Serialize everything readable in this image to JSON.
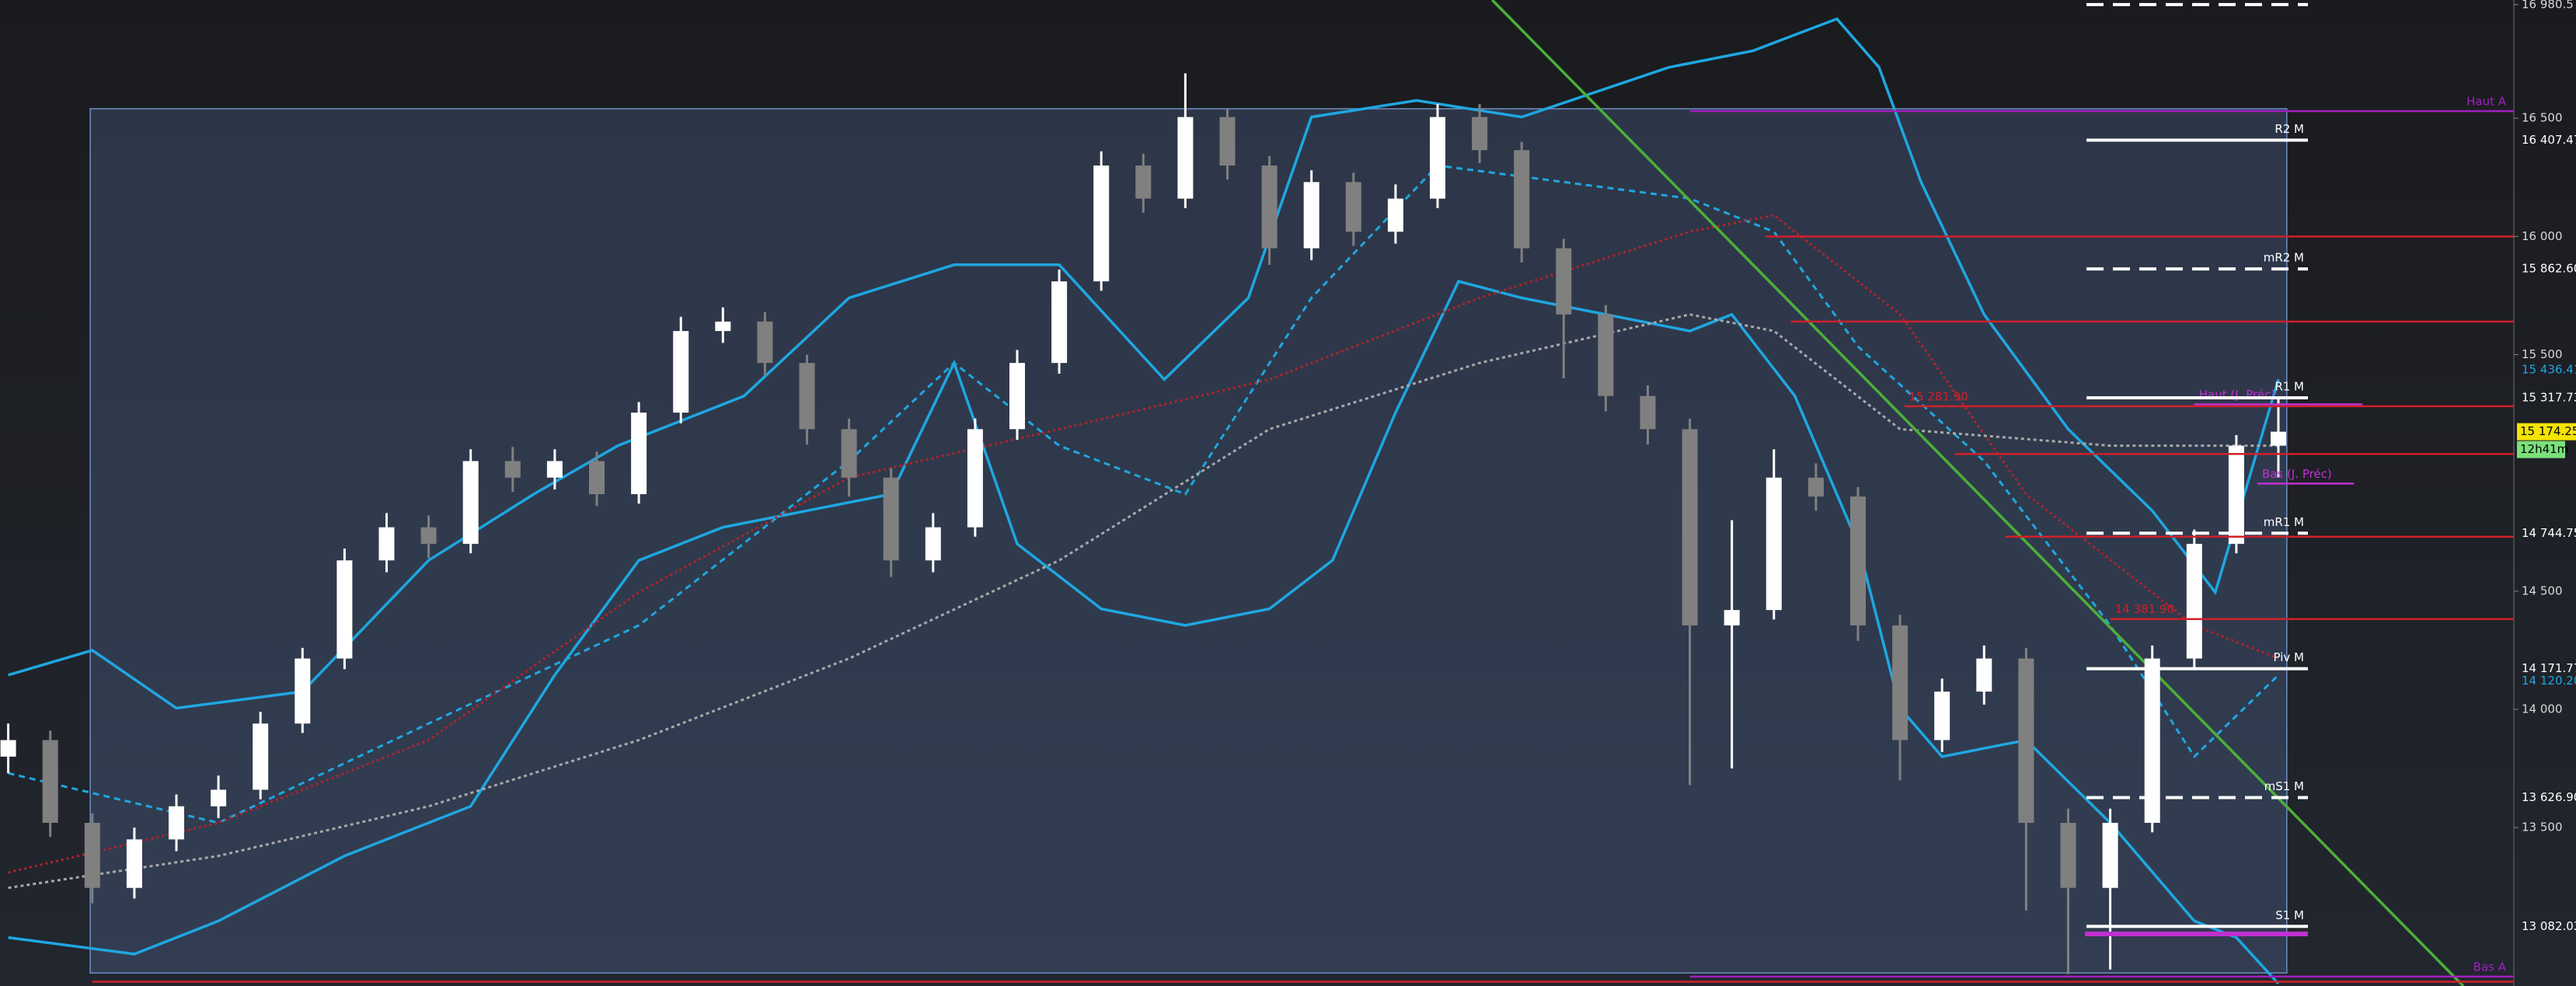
{
  "chart_data": {
    "type": "candlestick",
    "ylim": [
      12830,
      17000
    ],
    "yticks": [
      {
        "value": 16980.5,
        "label": "16 980.5"
      },
      {
        "value": 16500,
        "label": "16 500"
      },
      {
        "value": 16000,
        "label": "16 000"
      },
      {
        "value": 15500,
        "label": "15 500"
      },
      {
        "value": 14500,
        "label": "14 500"
      },
      {
        "value": 14000,
        "label": "14 000"
      },
      {
        "value": 13500,
        "label": "13 500"
      }
    ],
    "up_color": "#ffffff",
    "down_color": "#808080",
    "ohlc": {
      "open": [
        13800,
        13870,
        13520,
        13245,
        13450,
        13590,
        13660,
        13940,
        14215,
        14630,
        14770,
        14700,
        15050,
        14980,
        15050,
        14910,
        15255,
        15600,
        15640,
        15465,
        15185,
        14980,
        14630,
        14770,
        15185,
        15465,
        15810,
        16300,
        16160,
        16505,
        16300,
        15950,
        16230,
        16020,
        16160,
        16505,
        16365,
        15950,
        15670,
        15325,
        15185,
        14355,
        14420,
        14980,
        14900,
        14355,
        13870,
        14075,
        14215,
        13520,
        13245,
        13520,
        14215,
        14700,
        15115
      ],
      "high": [
        13940,
        13910,
        13560,
        13500,
        13640,
        13720,
        13990,
        14260,
        14680,
        14830,
        14820,
        15100,
        15110,
        15100,
        15090,
        15300,
        15660,
        15700,
        15680,
        15500,
        15230,
        15020,
        14830,
        15230,
        15520,
        15860,
        16360,
        16350,
        16690,
        16540,
        16340,
        16280,
        16270,
        16220,
        16560,
        16560,
        16400,
        15990,
        15710,
        15370,
        15230,
        14800,
        15100,
        15040,
        14940,
        14400,
        14130,
        14270,
        14260,
        13580,
        13580,
        14270,
        14760,
        15160,
        15320
      ],
      "low": [
        13730,
        13460,
        13180,
        13200,
        13400,
        13540,
        13620,
        13900,
        14170,
        14580,
        14640,
        14660,
        14920,
        14930,
        14860,
        14870,
        15210,
        15550,
        15410,
        15120,
        14900,
        14560,
        14580,
        14730,
        15140,
        15420,
        15770,
        16100,
        16120,
        16240,
        15880,
        15900,
        15960,
        15970,
        16120,
        16310,
        15890,
        15400,
        15260,
        15120,
        13680,
        13750,
        14380,
        14840,
        14290,
        13700,
        13820,
        14020,
        13150,
        12880,
        12900,
        13480,
        14170,
        14660,
        14980
      ],
      "close": [
        13870,
        13520,
        13245,
        13450,
        13590,
        13660,
        13940,
        14215,
        14630,
        14770,
        14700,
        15050,
        14980,
        15050,
        14910,
        15255,
        15600,
        15640,
        15465,
        15185,
        14980,
        14630,
        14770,
        15185,
        15465,
        15810,
        16300,
        16160,
        16505,
        16300,
        15950,
        16230,
        16020,
        16160,
        16505,
        16365,
        15950,
        15670,
        15325,
        15185,
        14355,
        14420,
        14980,
        14900,
        14355,
        13870,
        14075,
        14215,
        13520,
        13245,
        13520,
        14215,
        14700,
        15115,
        15174.25
      ]
    },
    "zone": {
      "x": [
        1.95,
        54.2
      ],
      "values": [
        16540,
        12885
      ],
      "color": "#6f8fc4"
    },
    "overlays": [
      {
        "color": "#1ea7e1",
        "dash": "none",
        "x": [
          0,
          2,
          4,
          7,
          10,
          12.5,
          14.5,
          17.5,
          20,
          22.5,
          25,
          27.5,
          29.5,
          31,
          33.5,
          36,
          39.5,
          41.5,
          43.5,
          44.5,
          45.5,
          47,
          49,
          51,
          52.5,
          54
        ],
        "values": [
          14145,
          14250,
          14005,
          14075,
          14630,
          14910,
          15115,
          15325,
          15740,
          15880,
          15880,
          15395,
          15740,
          16505,
          16575,
          16505,
          16715,
          16785,
          16920,
          16715,
          16230,
          15670,
          15185,
          14840,
          14495,
          15395
        ]
      },
      {
        "color": "#1ea7e1",
        "dash": "none",
        "x": [
          0,
          3,
          5,
          8,
          11,
          13,
          15,
          17,
          19,
          21,
          22.5,
          24,
          26,
          28,
          30,
          31.5,
          33,
          34.5,
          36,
          38,
          40,
          41,
          42.5,
          44,
          45,
          46,
          48,
          50,
          52,
          53,
          54
        ],
        "values": [
          13035,
          12965,
          13105,
          13380,
          13590,
          14145,
          14630,
          14770,
          14840,
          14910,
          15465,
          14700,
          14425,
          14355,
          14425,
          14630,
          15255,
          15810,
          15740,
          15670,
          15600,
          15670,
          15325,
          14700,
          14005,
          13800,
          13870,
          13520,
          13105,
          13035,
          12840
        ]
      },
      {
        "color": "#1ea7e1",
        "dash": "8 6",
        "x": [
          0,
          5,
          10,
          15,
          20,
          22.5,
          25,
          28,
          31,
          34,
          37,
          40,
          42,
          44,
          47,
          50,
          52,
          54
        ],
        "values": [
          13730,
          13520,
          13940,
          14355,
          15050,
          15465,
          15115,
          14910,
          15740,
          16300,
          16230,
          16160,
          16020,
          15535,
          15050,
          14355,
          13800,
          14145
        ]
      },
      {
        "color": "#b3232b",
        "dash": "3 4",
        "x": [
          0,
          5,
          10,
          15,
          20,
          25,
          30,
          35,
          40,
          42,
          45,
          48,
          52,
          54
        ],
        "values": [
          13310,
          13520,
          13870,
          14495,
          14980,
          15185,
          15395,
          15740,
          16020,
          16090,
          15670,
          14910,
          14355,
          14215
        ]
      },
      {
        "color": "#a9a9a9",
        "dash": "4 4",
        "x": [
          0,
          5,
          10,
          15,
          20,
          25,
          30,
          35,
          40,
          42,
          45,
          50,
          54
        ],
        "values": [
          13245,
          13380,
          13590,
          13870,
          14215,
          14630,
          15185,
          15465,
          15670,
          15600,
          15185,
          15115,
          15115
        ]
      },
      {
        "color": "#4caf3a",
        "dash": "none",
        "x": [
          35.3,
          58.4
        ],
        "values": [
          17000,
          12830
        ]
      }
    ],
    "levels": [
      {
        "value": 16980.5,
        "color": "#ffffff",
        "dash": true
      },
      {
        "label": "R2 M",
        "value": 16407.47,
        "price_label": "16 407.47",
        "color": "#ffffff",
        "dash": false
      },
      {
        "label": "mR2 M",
        "value": 15862.6,
        "price_label": "15 862.60",
        "color": "#ffffff",
        "dash": true
      },
      {
        "label": "R1 M",
        "value": 15317.73,
        "price_label": "15 317.73",
        "color": "#ffffff",
        "dash": false
      },
      {
        "label": "mR1 M",
        "value": 14744.75,
        "price_label": "14 744.75",
        "color": "#ffffff",
        "dash": true
      },
      {
        "label": "Piv M",
        "value": 14171.77,
        "price_label": "14 171.77",
        "color": "#ffffff",
        "dash": false
      },
      {
        "label": "mS1 M",
        "value": 13626.9,
        "price_label": "13 626.90",
        "color": "#ffffff",
        "dash": true
      },
      {
        "label": "S1 M",
        "value": 13082.03,
        "price_label": "13 082.03",
        "color": "#ffffff",
        "dash": false
      }
    ],
    "lines": [
      {
        "value": 16000,
        "x0": 41.8,
        "color": "#d0202a"
      },
      {
        "value": 15640,
        "x0": 42.4,
        "color": "#d0202a"
      },
      {
        "label": "15 281.90",
        "value": 15281.9,
        "x0": 45.1,
        "color": "#d0202a"
      },
      {
        "value": 15080,
        "x0": 46.3,
        "color": "#d0202a"
      },
      {
        "value": 14730,
        "x0": 47.5,
        "color": "#d0202a"
      },
      {
        "label": "14 381.90",
        "value": 14381.9,
        "x0": 50,
        "color": "#d0202a"
      },
      {
        "value": 12848,
        "x0": 2,
        "color": "#d0202a"
      },
      {
        "label": "Haut A",
        "value": 16530,
        "x0": 40,
        "color": "#a020c0",
        "right": true
      },
      {
        "label": "Bas A",
        "value": 12870,
        "x0": 40,
        "color": "#a020c0",
        "right": true
      },
      {
        "label": "Haut (J. Préc)",
        "value": 15290,
        "x0": 52,
        "x1": 56,
        "color": "#c030d0"
      },
      {
        "label": "Bas (J. Préc)",
        "value": 14955,
        "x0": 53.5,
        "x1": 55.8,
        "color": "#c030d0"
      },
      {
        "value": 13050,
        "x0": 49.4,
        "x1": 54.7,
        "color": "#c030d0"
      }
    ],
    "price_tag": {
      "value": 15174.25,
      "label": "15 174.25",
      "timer": "12h41m"
    },
    "axis_tags": [
      {
        "value": 15436.41,
        "label": "15 436.41",
        "color": "#1ea7e1"
      },
      {
        "value": 14120.2,
        "label": "14 120.20",
        "color": "#1ea7e1"
      }
    ]
  }
}
